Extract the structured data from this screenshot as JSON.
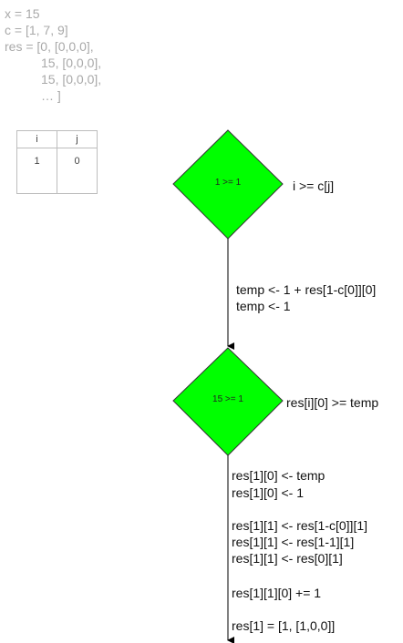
{
  "variables": {
    "x": "x = 15",
    "c": "c = [1, 7, 9]",
    "res_line1": "res = [0, [0,0,0],",
    "res_line2": "15, [0,0,0],",
    "res_line3": "15, [0,0,0],",
    "res_line4": "… ]"
  },
  "index_table": {
    "headers": [
      "i",
      "j"
    ],
    "values": [
      "1",
      "0"
    ]
  },
  "decision1": {
    "label": "1 >= 1",
    "condition": "i >= c[j]",
    "color": "#00ff00"
  },
  "edge1": {
    "line1": "temp <- 1 + res[1-c[0]][0]",
    "line2": "temp <- 1"
  },
  "decision2": {
    "label": "15 >= 1",
    "condition": "res[i][0] >= temp",
    "color": "#00ff00"
  },
  "edge2": {
    "line1": "res[1][0] <- temp",
    "line2": "res[1][0] <- 1",
    "line3": "res[1][1] <- res[1-c[0]][1]",
    "line4": "res[1][1] <- res[1-1][1]",
    "line5": "res[1][1] <- res[0][1]",
    "line6": "res[1][1][0] += 1",
    "line7": "res[1] = [1, [1,0,0]]"
  }
}
